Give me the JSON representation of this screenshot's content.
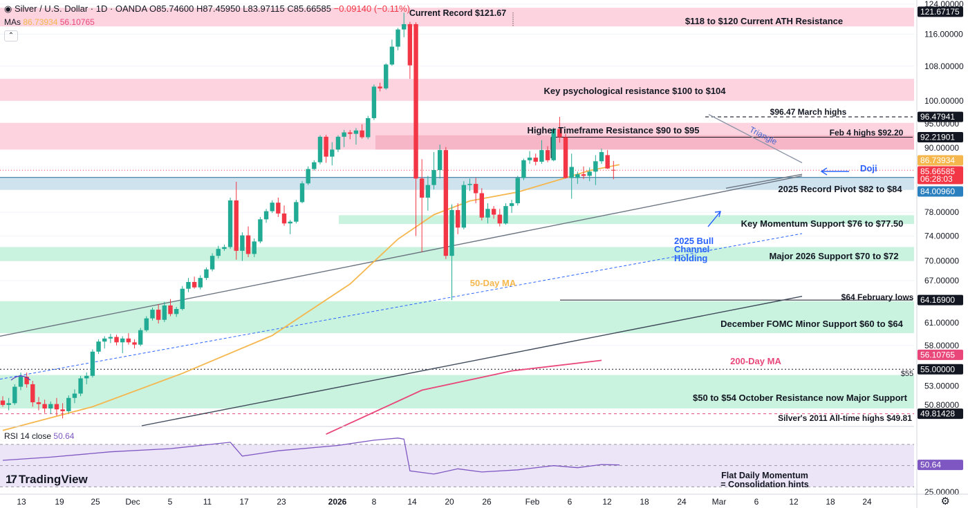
{
  "header": {
    "symbol": "Silver / U.S. Dollar · 1D · OANDA",
    "open": "O85.74600",
    "high": "H87.45950",
    "low": "L83.97115",
    "close": "C85.66585",
    "change": "−0.09140 (−0.11%)",
    "mas_label": "MAs",
    "ma50_value": "86.73934",
    "ma200_value": "56.10765",
    "rsi_label": "RSI 14 close",
    "rsi_value": "50.64",
    "brand": "TradingView"
  },
  "colors": {
    "up": "#22ab94",
    "down": "#f23645",
    "ma50": "#f5b74d",
    "ma200": "#e9467a",
    "resistance_zone": "#fcd3de",
    "support_zone": "#c9f2df",
    "pivot_zone": "#cfe3ee",
    "rsi_line": "#7e57c2",
    "rsi_band": "#ece4f7"
  },
  "chart_data": [
    {
      "type": "candlestick",
      "yscale": "log",
      "ylim": [
        48.5,
        124
      ],
      "x_ticks": [
        "13",
        "19",
        "25",
        "Dec",
        "5",
        "11",
        "17",
        "23",
        "2026",
        "8",
        "14",
        "20",
        "26",
        "Feb",
        "6",
        "12",
        "18",
        "24",
        "Mar",
        "6",
        "12",
        "18",
        "24"
      ],
      "y_ticks": [
        "124.00000",
        "116.00000",
        "108.00000",
        "100.00000",
        "95.00000",
        "90.00000",
        "78.00000",
        "74.00000",
        "70.00000",
        "67.00000",
        "61.00000",
        "58.00000",
        "53.00000",
        "50.80000"
      ],
      "price_labels": [
        {
          "text": "121.67175",
          "kind": "dark"
        },
        {
          "text": "96.47941",
          "kind": "dark"
        },
        {
          "text": "92.21901",
          "kind": "dark"
        },
        {
          "text": "86.73934",
          "kind": "ma50"
        },
        {
          "text": "85.66585",
          "sub": "06:28:03",
          "kind": "last"
        },
        {
          "text": "84.00960",
          "kind": "blue"
        },
        {
          "text": "64.16900",
          "kind": "dark"
        },
        {
          "text": "56.10765",
          "kind": "ma200"
        },
        {
          "text": "55.00000",
          "kind": "dark"
        },
        {
          "text": "49.81428",
          "kind": "dark"
        }
      ],
      "candles": [
        [
          51.3,
          51.8,
          50.6,
          50.8
        ],
        [
          50.8,
          51.6,
          50.2,
          51.0
        ],
        [
          51.0,
          53.2,
          50.8,
          52.9
        ],
        [
          52.9,
          54.6,
          52.5,
          54.1
        ],
        [
          54.1,
          54.6,
          52.8,
          53.2
        ],
        [
          53.2,
          53.6,
          50.6,
          51.1
        ],
        [
          51.1,
          51.7,
          50.2,
          50.9
        ],
        [
          50.9,
          51.4,
          49.9,
          50.4
        ],
        [
          50.4,
          51.2,
          49.8,
          50.9
        ],
        [
          50.9,
          51.6,
          49.6,
          50.3
        ],
        [
          50.3,
          51.0,
          49.3,
          50.1
        ],
        [
          50.1,
          51.9,
          49.9,
          51.6
        ],
        [
          51.6,
          52.6,
          51.0,
          52.1
        ],
        [
          52.1,
          54.2,
          51.8,
          53.9
        ],
        [
          53.9,
          54.6,
          53.2,
          54.2
        ],
        [
          54.2,
          57.5,
          54.0,
          57.2
        ],
        [
          57.2,
          58.8,
          56.9,
          58.5
        ],
        [
          58.5,
          59.2,
          57.6,
          58.9
        ],
        [
          58.9,
          59.5,
          58.3,
          59.1
        ],
        [
          59.1,
          59.4,
          58.0,
          58.4
        ],
        [
          58.4,
          59.2,
          57.0,
          58.9
        ],
        [
          58.9,
          59.6,
          58.1,
          58.4
        ],
        [
          58.4,
          58.8,
          57.6,
          58.1
        ],
        [
          58.1,
          60.3,
          57.9,
          60.0
        ],
        [
          60.0,
          61.9,
          59.8,
          61.6
        ],
        [
          61.6,
          63.1,
          61.3,
          62.8
        ],
        [
          62.8,
          63.6,
          60.9,
          61.4
        ],
        [
          61.4,
          63.9,
          61.1,
          63.4
        ],
        [
          63.4,
          64.3,
          61.9,
          62.2
        ],
        [
          62.2,
          63.2,
          61.8,
          62.9
        ],
        [
          62.9,
          66.2,
          62.7,
          65.8
        ],
        [
          65.8,
          67.4,
          65.3,
          66.8
        ],
        [
          66.8,
          67.6,
          65.8,
          66.0
        ],
        [
          66.0,
          67.8,
          65.7,
          67.4
        ],
        [
          67.4,
          69.0,
          67.1,
          68.7
        ],
        [
          68.7,
          71.2,
          68.4,
          70.8
        ],
        [
          70.8,
          72.4,
          70.4,
          71.9
        ],
        [
          71.9,
          72.6,
          71.6,
          72.2
        ],
        [
          72.2,
          80.6,
          71.9,
          80.1
        ],
        [
          80.1,
          83.5,
          70.2,
          71.6
        ],
        [
          71.6,
          74.6,
          70.0,
          74.1
        ],
        [
          74.1,
          75.6,
          70.6,
          71.1
        ],
        [
          71.1,
          73.6,
          70.6,
          73.1
        ],
        [
          73.1,
          77.2,
          72.8,
          76.8
        ],
        [
          76.8,
          78.6,
          76.2,
          78.2
        ],
        [
          78.2,
          80.1,
          77.9,
          79.7
        ],
        [
          79.7,
          80.6,
          77.2,
          77.8
        ],
        [
          77.8,
          79.2,
          75.7,
          76.1
        ],
        [
          76.1,
          76.7,
          74.3,
          76.4
        ],
        [
          76.4,
          80.2,
          76.1,
          79.8
        ],
        [
          79.8,
          83.6,
          79.6,
          83.2
        ],
        [
          83.2,
          86.4,
          82.9,
          85.9
        ],
        [
          85.9,
          87.6,
          85.6,
          87.2
        ],
        [
          87.2,
          92.6,
          86.8,
          92.3
        ],
        [
          92.3,
          92.7,
          87.1,
          88.3
        ],
        [
          88.3,
          91.2,
          86.6,
          89.7
        ],
        [
          89.7,
          92.6,
          89.2,
          92.3
        ],
        [
          92.3,
          93.7,
          90.2,
          93.2
        ],
        [
          93.2,
          93.7,
          91.8,
          92.9
        ],
        [
          92.9,
          94.1,
          90.7,
          93.6
        ],
        [
          93.6,
          94.9,
          91.9,
          92.2
        ],
        [
          92.2,
          96.7,
          91.8,
          96.2
        ],
        [
          96.2,
          103.7,
          95.8,
          103.2
        ],
        [
          103.2,
          104.1,
          102.1,
          102.8
        ],
        [
          102.8,
          108.7,
          102.5,
          108.4
        ],
        [
          108.4,
          114.6,
          108.1,
          112.8
        ],
        [
          112.8,
          117.6,
          111.9,
          117.2
        ],
        [
          117.2,
          121.67,
          115.2,
          118.6
        ],
        [
          118.6,
          119.2,
          105.0,
          108.2
        ],
        [
          118.6,
          119.1,
          74.0,
          84.1
        ],
        [
          84.1,
          87.8,
          71.4,
          80.6
        ],
        [
          80.6,
          84.6,
          78.3,
          82.9
        ],
        [
          82.9,
          89.2,
          82.1,
          85.7
        ],
        [
          85.7,
          90.7,
          84.1,
          89.6
        ],
        [
          89.6,
          90.2,
          70.3,
          70.8
        ],
        [
          70.8,
          79.4,
          64.17,
          78.4
        ],
        [
          78.4,
          79.6,
          74.3,
          75.4
        ],
        [
          75.4,
          83.6,
          75.1,
          82.9
        ],
        [
          82.9,
          84.1,
          81.8,
          83.1
        ],
        [
          83.1,
          84.2,
          79.6,
          81.4
        ],
        [
          81.4,
          82.3,
          76.6,
          77.1
        ],
        [
          77.1,
          79.6,
          76.1,
          78.6
        ],
        [
          78.6,
          79.1,
          76.9,
          77.6
        ],
        [
          77.6,
          78.6,
          75.6,
          76.1
        ],
        [
          76.1,
          79.6,
          75.9,
          79.1
        ],
        [
          79.1,
          80.2,
          77.9,
          79.6
        ],
        [
          79.6,
          84.6,
          79.2,
          84.2
        ],
        [
          84.2,
          87.9,
          83.8,
          87.6
        ],
        [
          87.6,
          89.4,
          86.9,
          88.1
        ],
        [
          88.1,
          88.9,
          86.6,
          87.3
        ],
        [
          87.3,
          91.6,
          86.9,
          89.6
        ],
        [
          89.6,
          90.4,
          87.2,
          87.6
        ],
        [
          87.6,
          94.2,
          87.4,
          93.9
        ],
        [
          93.9,
          96.48,
          91.1,
          92.2
        ],
        [
          92.2,
          92.9,
          84.1,
          84.2
        ],
        [
          84.2,
          88.9,
          80.4,
          86.3
        ],
        [
          84.2,
          85.4,
          83.1,
          84.9
        ],
        [
          84.9,
          86.4,
          84.0,
          84.6
        ],
        [
          84.6,
          86.2,
          83.6,
          85.4
        ],
        [
          85.4,
          88.6,
          82.9,
          87.4
        ],
        [
          87.4,
          89.9,
          86.9,
          89.2
        ],
        [
          88.6,
          89.6,
          85.9,
          86.0
        ],
        [
          85.74,
          87.46,
          83.97,
          85.67
        ]
      ],
      "candle_x_start": 4,
      "ma50": [
        [
          0,
          48.0
        ],
        [
          15,
          50.6
        ],
        [
          30,
          54.5
        ],
        [
          45,
          59.3
        ],
        [
          58,
          66.5
        ],
        [
          66,
          73.5
        ],
        [
          72,
          77.6
        ],
        [
          78,
          80.0
        ],
        [
          86,
          81.6
        ],
        [
          93,
          83.9
        ],
        [
          98,
          85.6
        ],
        [
          103,
          86.74
        ]
      ],
      "ma200": [
        [
          54,
          47.6
        ],
        [
          70,
          52.5
        ],
        [
          85,
          54.8
        ],
        [
          100,
          56.1
        ]
      ],
      "annotations": [
        "Current Record $121.67",
        "$118 to $120 Current ATH Resistance",
        "Key psychological resistance $100 to $104",
        "$96.47 March highs",
        "Higher Timeframe Resistance $90 to $95",
        "Feb 4 highs $92.20",
        "Triangle",
        "Doji",
        "2025 Record Pivot $82 to $84",
        "Key Momentum Support $76 to $77.50",
        "2025 Bull",
        "Channel",
        "Holding",
        "Major 2026 Support $70 to $72",
        "50-Day MA",
        "$64 February lows",
        "December FOMC Minor Support $60 to $64",
        "200-Day MA",
        "$55",
        "$50 to $54 October Resistance now Major Support",
        "Silver's 2011 All-time highs $49.81"
      ]
    },
    {
      "type": "line",
      "name": "RSI 14 close",
      "ylim": [
        25,
        85
      ],
      "y_ticks": [
        "25.00000"
      ],
      "values": [
        [
          0,
          55
        ],
        [
          8,
          58
        ],
        [
          18,
          63
        ],
        [
          28,
          66
        ],
        [
          38,
          72
        ],
        [
          40,
          59
        ],
        [
          46,
          64
        ],
        [
          56,
          69
        ],
        [
          62,
          74
        ],
        [
          66,
          76
        ],
        [
          67,
          75
        ],
        [
          68,
          45
        ],
        [
          72,
          42
        ],
        [
          76,
          47
        ],
        [
          80,
          44
        ],
        [
          86,
          46
        ],
        [
          92,
          50
        ],
        [
          96,
          48
        ],
        [
          100,
          51
        ],
        [
          103,
          50.64
        ]
      ]
    }
  ]
}
